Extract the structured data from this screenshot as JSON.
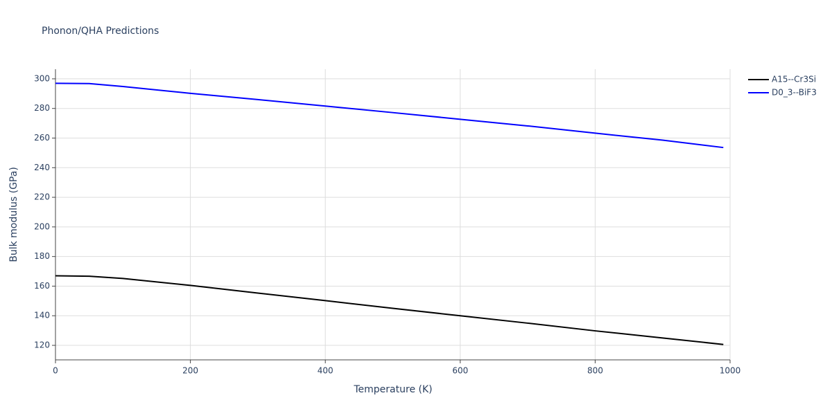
{
  "chart_data": {
    "type": "line",
    "title": "Phonon/QHA Predictions",
    "x_label": "Temperature (K)",
    "y_label": "Bulk modulus (GPa)",
    "x": [
      0,
      50,
      100,
      200,
      300,
      400,
      500,
      600,
      700,
      800,
      900,
      990
    ],
    "series": [
      {
        "name": "A15--Cr3Si",
        "color": "#000000",
        "values": [
          167,
          166.7,
          165.2,
          160.5,
          155.3,
          150.2,
          145,
          140,
          135,
          129.8,
          125,
          120.6
        ]
      },
      {
        "name": "D0_3--BiF3",
        "color": "#0000ff",
        "values": [
          297,
          296.8,
          294.8,
          290.2,
          286,
          281.6,
          277.2,
          272.7,
          268.2,
          263.3,
          258.6,
          253.6
        ]
      }
    ],
    "xlim": [
      0,
      1000
    ],
    "xticks": [
      0,
      200,
      400,
      600,
      800,
      1000
    ],
    "ylim": [
      110.2,
      306.5
    ],
    "yticks": [
      120,
      140,
      160,
      180,
      200,
      220,
      240,
      260,
      280,
      300
    ],
    "grid": true,
    "legend": "right"
  }
}
